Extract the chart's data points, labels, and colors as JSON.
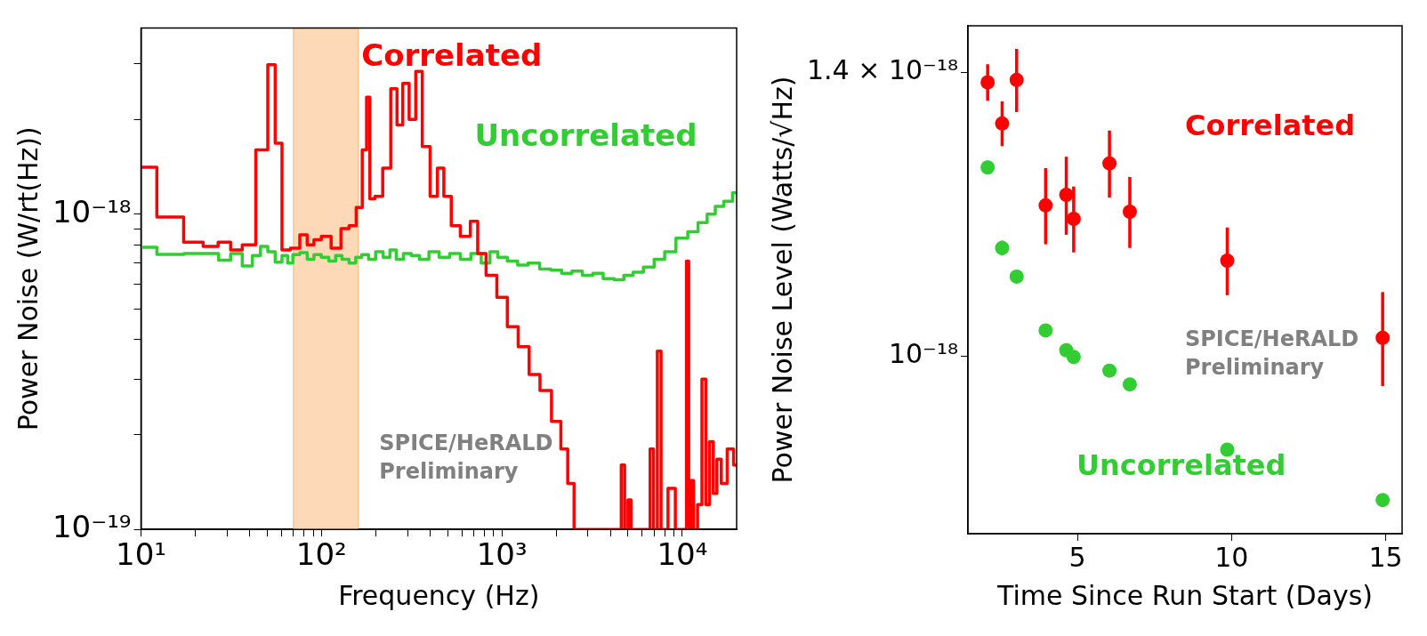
{
  "chart_data": [
    {
      "type": "step",
      "xlabel": "Frequency (Hz)",
      "ylabel": "Power Noise (W/rt(Hz))",
      "log": "xy",
      "grid": false,
      "legend": false,
      "marker": "none",
      "xlim": [
        10,
        20000
      ],
      "ylim": [
        1e-19,
        3.9e-18
      ],
      "xticks": [
        {
          "value": 10,
          "label": "10¹"
        },
        {
          "value": 20,
          "label": null
        },
        {
          "value": 30,
          "label": null
        },
        {
          "value": 40,
          "label": null
        },
        {
          "value": 50,
          "label": null
        },
        {
          "value": 60,
          "label": null
        },
        {
          "value": 70,
          "label": null
        },
        {
          "value": 80,
          "label": null
        },
        {
          "value": 90,
          "label": null
        },
        {
          "value": 100,
          "label": "10²"
        },
        {
          "value": 200,
          "label": null
        },
        {
          "value": 300,
          "label": null
        },
        {
          "value": 400,
          "label": null
        },
        {
          "value": 500,
          "label": null
        },
        {
          "value": 600,
          "label": null
        },
        {
          "value": 700,
          "label": null
        },
        {
          "value": 800,
          "label": null
        },
        {
          "value": 900,
          "label": null
        },
        {
          "value": 1000,
          "label": "10³"
        },
        {
          "value": 2000,
          "label": null
        },
        {
          "value": 3000,
          "label": null
        },
        {
          "value": 4000,
          "label": null
        },
        {
          "value": 5000,
          "label": null
        },
        {
          "value": 6000,
          "label": null
        },
        {
          "value": 7000,
          "label": null
        },
        {
          "value": 8000,
          "label": null
        },
        {
          "value": 9000,
          "label": null
        },
        {
          "value": 10000,
          "label": "10⁴"
        }
      ],
      "yticks": [
        {
          "value": 1e-19,
          "label": "10⁻¹⁹"
        },
        {
          "value": 2e-19,
          "label": null
        },
        {
          "value": 3e-19,
          "label": null
        },
        {
          "value": 4e-19,
          "label": null
        },
        {
          "value": 5e-19,
          "label": null
        },
        {
          "value": 6e-19,
          "label": null
        },
        {
          "value": 7e-19,
          "label": null
        },
        {
          "value": 8e-19,
          "label": null
        },
        {
          "value": 9e-19,
          "label": null
        },
        {
          "value": 1e-18,
          "label": "10⁻¹⁸"
        },
        {
          "value": 2e-18,
          "label": null
        },
        {
          "value": 3e-18,
          "label": null
        }
      ],
      "bands": [
        {
          "axis": "x",
          "from": 70,
          "to": 160,
          "color": "#fdd9b8"
        }
      ],
      "annotations": [
        "SPICE/HeRALD Preliminary"
      ],
      "series": [
        {
          "name": "Correlated",
          "color": "#ff0000",
          "x": [
            10,
            15,
            19.8,
            24.7,
            29,
            34,
            39,
            48,
            53,
            58,
            63,
            72,
            80,
            87,
            95,
            105,
            122,
            135,
            150,
            162,
            175,
            181,
            190,
            206,
            232,
            253,
            272,
            293,
            320,
            347,
            378,
            424,
            455,
            500,
            550,
            630,
            710,
            760,
            880,
            1000,
            1150,
            1320,
            1520,
            1740,
            2040,
            2210,
            2430,
            2600,
            3000,
            4500,
            4680,
            4900,
            5100,
            5300,
            6500,
            6760,
            7100,
            7450,
            7800,
            8900,
            9400,
            10400,
            10700,
            11000,
            11300,
            11800,
            12500,
            13200,
            13800,
            14500,
            15200,
            15900,
            17000,
            18500,
            20000
          ],
          "values": [
            1.41e-18,
            9.8e-19,
            8.15e-19,
            7.9e-19,
            8.15e-19,
            7.7e-19,
            8e-19,
            1.6e-18,
            2.98e-18,
            1.68e-18,
            7.7e-19,
            7.8e-19,
            8.6e-19,
            8e-19,
            8.3e-19,
            8.5e-19,
            7.8e-19,
            9e-19,
            9.2e-19,
            1.05e-18,
            1.6e-18,
            2.35e-18,
            1.12e-18,
            1.14e-18,
            1.4e-18,
            2.5e-18,
            1.92e-18,
            2.6e-18,
            2e-18,
            2.84e-18,
            1.64e-18,
            1.14e-18,
            1.4e-18,
            1.14e-18,
            9.2e-19,
            8.5e-19,
            9.5e-19,
            7.5e-19,
            6.4e-19,
            5.45e-19,
            4.4e-19,
            3.8e-19,
            3.1e-19,
            2.76e-19,
            2.2e-19,
            1.8e-19,
            1.4e-19,
            1e-19,
            1e-19,
            1e-19,
            1.6e-19,
            1e-19,
            1.24e-19,
            1e-19,
            1e-19,
            1.8e-19,
            1e-19,
            3.68e-19,
            1e-19,
            1.35e-19,
            1e-19,
            1e-19,
            7.1e-19,
            1e-19,
            1.43e-19,
            1e-19,
            1.2e-19,
            3e-19,
            1.2e-19,
            1.9e-19,
            1.3e-19,
            1.67e-19,
            1.4e-19,
            1.8e-19,
            1.6e-19
          ]
        },
        {
          "name": "Uncorrelated",
          "color": "#32cd32",
          "x": [
            10,
            15,
            20,
            25,
            29,
            34,
            39,
            44,
            48,
            53,
            58,
            63,
            67,
            72,
            80,
            87,
            95,
            105,
            115,
            125,
            135,
            150,
            160,
            175,
            190,
            210,
            230,
            250,
            270,
            300,
            330,
            370,
            420,
            480,
            550,
            630,
            720,
            820,
            900,
            1000,
            1150,
            1300,
            1500,
            1750,
            2000,
            2300,
            2600,
            3000,
            3400,
            3900,
            4500,
            5000,
            5700,
            6500,
            7500,
            8500,
            10000,
            11500,
            13000,
            14500,
            16000,
            18000,
            20000
          ],
          "values": [
            7.85e-19,
            7.46e-19,
            7.5e-19,
            7.5e-19,
            7.15e-19,
            7.5e-19,
            6.85e-19,
            7.4e-19,
            7.9e-19,
            7.6e-19,
            7.05e-19,
            7.4e-19,
            7e-19,
            7.45e-19,
            7.55e-19,
            7.2e-19,
            7.45e-19,
            7.3e-19,
            7.1e-19,
            7.4e-19,
            7.2e-19,
            7e-19,
            7.3e-19,
            7.45e-19,
            7.2e-19,
            7.6e-19,
            7.3e-19,
            7.7e-19,
            7.2e-19,
            7.5e-19,
            7.4e-19,
            7.2e-19,
            7.6e-19,
            7.3e-19,
            7.5e-19,
            7.2e-19,
            7.5e-19,
            7e-19,
            7.6e-19,
            7.3e-19,
            7.1e-19,
            6.9e-19,
            7e-19,
            6.7e-19,
            6.65e-19,
            6.5e-19,
            6.6e-19,
            6.4e-19,
            6.5e-19,
            6.25e-19,
            6.2e-19,
            6.4e-19,
            6.55e-19,
            6.8e-19,
            7.2e-19,
            7.6e-19,
            8.4e-19,
            8.8e-19,
            9.4e-19,
            1e-18,
            1.06e-18,
            1.1e-18,
            1.17e-18
          ]
        }
      ]
    },
    {
      "type": "scatter",
      "xlabel": "Time Since Run Start (Days)",
      "ylabel": "Power Noise Level (Watts/√Hz)",
      "log": "y",
      "grid": false,
      "legend": false,
      "marker": "circle",
      "xlim": [
        1.45,
        15.53
      ],
      "ylim": [
        8.13e-19,
        1.48e-18
      ],
      "xticks": [
        5,
        10,
        15
      ],
      "yticks": [
        {
          "value": 1e-18,
          "label": "10⁻¹⁸"
        },
        {
          "value": 1.4e-18,
          "label": "1.4 × 10⁻¹⁸"
        }
      ],
      "annotations": [
        "SPICE/HeRALD Preliminary"
      ],
      "series": [
        {
          "name": "Correlated",
          "color": "#ff0000",
          "x": [
            2.09,
            2.56,
            3.03,
            3.97,
            4.64,
            4.88,
            6.04,
            6.7,
            9.86,
            14.9
          ],
          "values": [
            1.384e-18,
            1.318e-18,
            1.388e-18,
            1.196e-18,
            1.211e-18,
            1.177e-18,
            1.257e-18,
            1.187e-18,
            1.12e-18,
            1.022e-18
          ],
          "errors": [
            3e-20,
            3.5e-20,
            5.2e-20,
            5.4e-20,
            5.6e-20,
            4.6e-20,
            5e-20,
            5e-20,
            4.5e-20,
            5.7e-20
          ]
        },
        {
          "name": "Uncorrelated",
          "color": "#32cd32",
          "x": [
            2.09,
            2.56,
            3.03,
            3.97,
            4.64,
            4.88,
            6.04,
            6.7,
            9.86,
            14.9
          ],
          "values": [
            1.251e-18,
            1.137e-18,
            1.099e-18,
            1.031e-18,
            1.007e-18,
            9.99e-19,
            9.83e-19,
            9.67e-19,
            8.95e-19,
            8.43e-19
          ],
          "errors": [
            1e-20,
            1e-20,
            5e-21,
            8e-21,
            5e-21,
            5e-21,
            5e-21,
            5e-21,
            5e-21,
            5e-21
          ]
        }
      ]
    }
  ]
}
